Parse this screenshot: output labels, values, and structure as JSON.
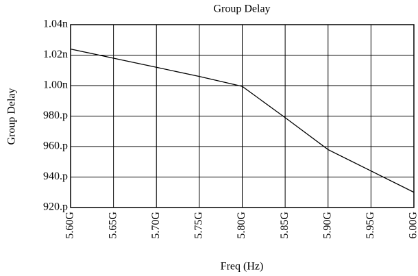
{
  "chart_data": {
    "type": "line",
    "title": "Group Delay",
    "x_label": "Freq (Hz)",
    "y_label": "Group Delay",
    "x": [
      5600000000,
      5650000000,
      5700000000,
      5750000000,
      5800000000,
      5850000000,
      5900000000,
      5950000000,
      6000000000
    ],
    "series": [
      {
        "color": "#000000",
        "values": [
          1.024e-09,
          1.018e-09,
          1.012e-09,
          1.006e-09,
          9.995e-10,
          9.79e-10,
          9.58e-10,
          9.44e-10,
          9.3e-10
        ]
      }
    ],
    "xlim": [
      5600000000,
      6000000000
    ],
    "xticks": [
      {
        "value": 5600000000,
        "label": "5.60G"
      },
      {
        "value": 5650000000,
        "label": "5.65G"
      },
      {
        "value": 5700000000,
        "label": "5.70G"
      },
      {
        "value": 5750000000,
        "label": "5.75G"
      },
      {
        "value": 5800000000,
        "label": "5.80G"
      },
      {
        "value": 5850000000,
        "label": "5.85G"
      },
      {
        "value": 5900000000,
        "label": "5.90G"
      },
      {
        "value": 5950000000,
        "label": "5.95G"
      },
      {
        "value": 6000000000,
        "label": "6.00G"
      }
    ],
    "ylim": [
      9.2e-10,
      1.04e-09
    ],
    "yticks": [
      {
        "value": 9.2e-10,
        "label": "920.p"
      },
      {
        "value": 9.4e-10,
        "label": "940.p"
      },
      {
        "value": 9.6e-10,
        "label": "960.p"
      },
      {
        "value": 9.8e-10,
        "label": "980.p"
      },
      {
        "value": 1e-09,
        "label": "1.00n"
      },
      {
        "value": 1.02e-09,
        "label": "1.02n"
      },
      {
        "value": 1.04e-09,
        "label": "1.04n"
      }
    ],
    "grid": true
  }
}
